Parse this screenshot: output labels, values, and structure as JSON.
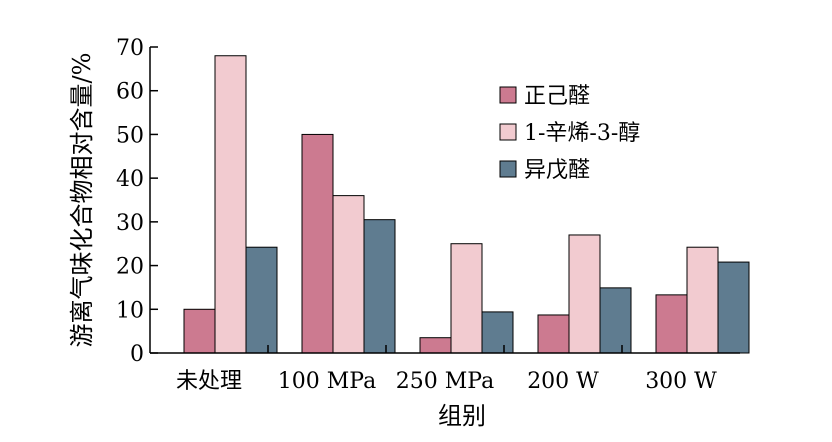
{
  "chart_data": {
    "type": "bar",
    "categories": [
      "未处理",
      "100 MPa",
      "250 MPa",
      "200 W",
      "300 W"
    ],
    "series": [
      {
        "name": "正己醛",
        "values": [
          10,
          50,
          3.5,
          8.7,
          13.3
        ],
        "color": "#cc7a90"
      },
      {
        "name": "1-辛烯-3-醇",
        "values": [
          68,
          36,
          25,
          27,
          24.2
        ],
        "color": "#f2cbd0"
      },
      {
        "name": "异戊醛",
        "values": [
          24.2,
          30.5,
          9.4,
          14.9,
          20.8
        ],
        "color": "#5f7c90"
      }
    ],
    "xlabel": "组别",
    "ylabel": "游离气味化合物相对含量/%",
    "ylim": [
      0,
      70
    ],
    "yticks": [
      0,
      10,
      20,
      30,
      40,
      50,
      60,
      70
    ],
    "grid": false,
    "legend_position": "top-right"
  }
}
